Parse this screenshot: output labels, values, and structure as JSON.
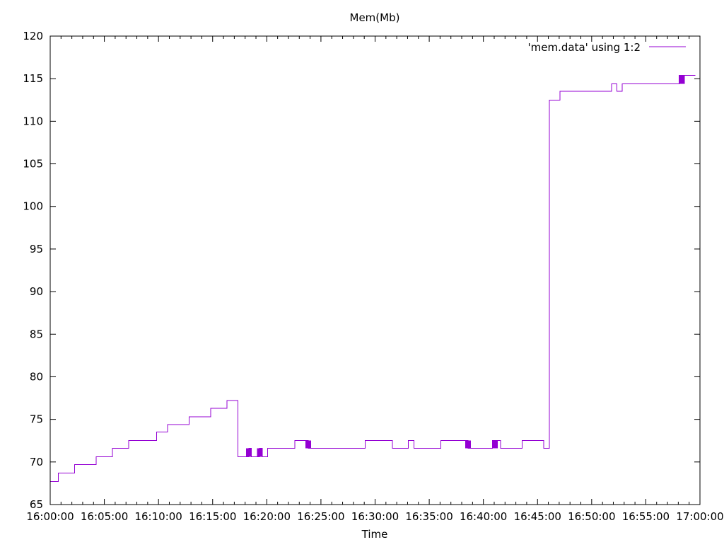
{
  "chart_data": {
    "type": "line",
    "title": "Mem(Mb)",
    "xlabel": "Time",
    "ylabel": "",
    "ylim": [
      65,
      120
    ],
    "xlim": [
      "16:00:00",
      "17:00:00"
    ],
    "y_ticks": [
      "65",
      "70",
      "75",
      "80",
      "85",
      "90",
      "95",
      "100",
      "105",
      "110",
      "115",
      "120"
    ],
    "x_ticks": [
      "16:00:00",
      "16:05:00",
      "16:10:00",
      "16:15:00",
      "16:20:00",
      "16:25:00",
      "16:30:00",
      "16:35:00",
      "16:40:00",
      "16:45:00",
      "16:50:00",
      "16:55:00",
      "17:00:00"
    ],
    "grid": false,
    "legend": {
      "position": "top-right",
      "entries": [
        "'mem.data' using 1:2"
      ]
    },
    "series": [
      {
        "name": "'mem.data' using 1:2",
        "color": "#9400d3",
        "style": "steps",
        "points": [
          [
            "16:00:00",
            67.7
          ],
          [
            "16:00:45",
            68.7
          ],
          [
            "16:02:15",
            69.7
          ],
          [
            "16:04:15",
            70.6
          ],
          [
            "16:05:45",
            71.6
          ],
          [
            "16:07:15",
            72.5
          ],
          [
            "16:09:50",
            73.5
          ],
          [
            "16:10:50",
            74.4
          ],
          [
            "16:12:50",
            75.3
          ],
          [
            "16:14:50",
            76.3
          ],
          [
            "16:16:20",
            77.2
          ],
          [
            "16:17:20",
            70.6
          ],
          [
            "16:18:20",
            71.6
          ],
          [
            "16:18:35",
            70.6
          ],
          [
            "16:19:20",
            71.6
          ],
          [
            "16:19:35",
            70.6
          ],
          [
            "16:20:05",
            71.6
          ],
          [
            "16:22:35",
            72.5
          ],
          [
            "16:23:50",
            71.6
          ],
          [
            "16:24:05",
            71.6
          ],
          [
            "16:29:05",
            72.5
          ],
          [
            "16:31:35",
            71.6
          ],
          [
            "16:33:05",
            72.5
          ],
          [
            "16:33:35",
            71.6
          ],
          [
            "16:36:05",
            72.5
          ],
          [
            "16:38:35",
            71.6
          ],
          [
            "16:40:50",
            72.5
          ],
          [
            "16:41:05",
            72.5
          ],
          [
            "16:41:35",
            71.6
          ],
          [
            "16:43:35",
            72.5
          ],
          [
            "16:45:35",
            71.6
          ],
          [
            "16:46:05",
            112.5
          ],
          [
            "16:47:05",
            113.5
          ],
          [
            "16:51:50",
            114.4
          ],
          [
            "16:52:20",
            113.5
          ],
          [
            "16:52:50",
            114.4
          ],
          [
            "16:58:05",
            115.4
          ],
          [
            "16:59:35",
            115.4
          ]
        ],
        "bursts": [
          {
            "x_start": "16:18:05",
            "x_end": "16:18:35",
            "y_low": 70.6,
            "y_high": 71.6
          },
          {
            "x_start": "16:19:05",
            "x_end": "16:19:35",
            "y_low": 70.6,
            "y_high": 71.6
          },
          {
            "x_start": "16:23:35",
            "x_end": "16:24:05",
            "y_low": 71.6,
            "y_high": 72.5
          },
          {
            "x_start": "16:38:20",
            "x_end": "16:38:50",
            "y_low": 71.6,
            "y_high": 72.5
          },
          {
            "x_start": "16:40:50",
            "x_end": "16:41:20",
            "y_low": 71.6,
            "y_high": 72.5
          },
          {
            "x_start": "16:58:05",
            "x_end": "16:58:35",
            "y_low": 114.4,
            "y_high": 115.4
          }
        ]
      }
    ]
  }
}
